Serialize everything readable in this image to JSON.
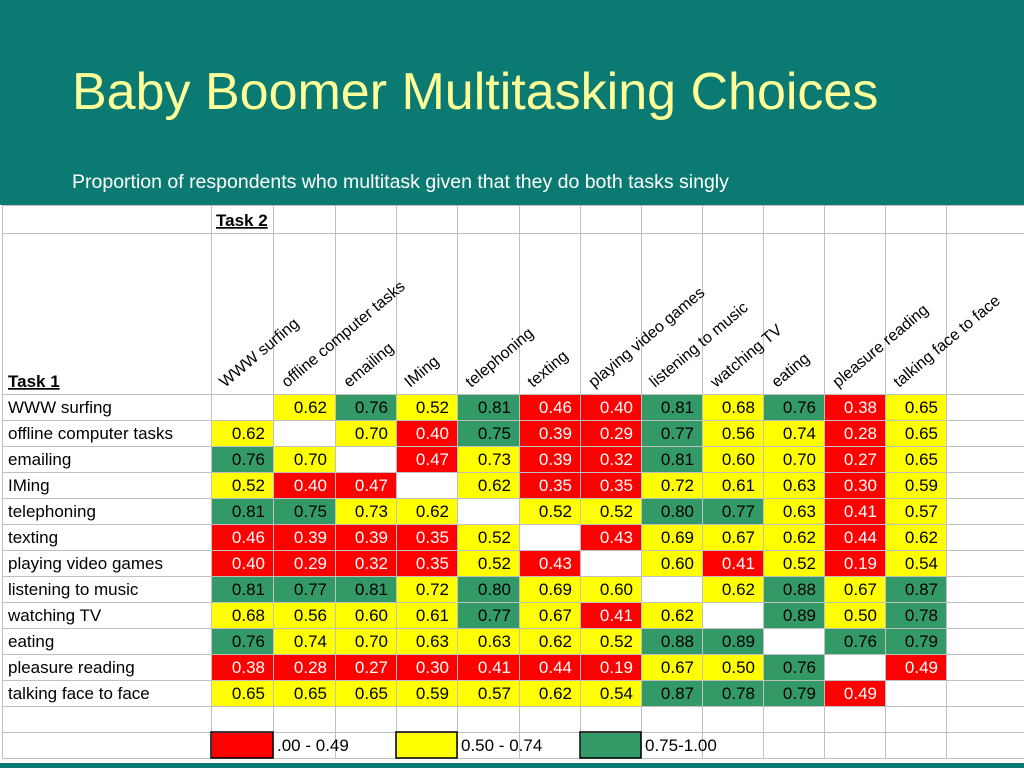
{
  "title": "Baby Boomer Multitasking Choices",
  "subtitle": "Proportion of respondents who multitask given that they do both tasks singly",
  "colors": {
    "background": "#0b7a73",
    "title": "#ffff99",
    "red": "#ff0000",
    "yellow": "#ffff00",
    "green": "#339966",
    "grid": "#c0c0c0"
  },
  "chart_data": {
    "type": "heatmap",
    "row_header": "Task 1",
    "col_header": "Task 2",
    "tasks": [
      "WWW surfing",
      "offline computer tasks",
      "emailing",
      "IMing",
      "telephoning",
      "texting",
      "playing video games",
      "listening to music",
      "watching TV",
      "eating",
      "pleasure reading",
      "talking face to face"
    ],
    "values": [
      [
        null,
        "0.62",
        "0.76",
        "0.52",
        "0.81",
        "0.46",
        "0.40",
        "0.81",
        "0.68",
        "0.76",
        "0.38",
        "0.65"
      ],
      [
        "0.62",
        null,
        "0.70",
        "0.40",
        "0.75",
        "0.39",
        "0.29",
        "0.77",
        "0.56",
        "0.74",
        "0.28",
        "0.65"
      ],
      [
        "0.76",
        "0.70",
        null,
        "0.47",
        "0.73",
        "0.39",
        "0.32",
        "0.81",
        "0.60",
        "0.70",
        "0.27",
        "0.65"
      ],
      [
        "0.52",
        "0.40",
        "0.47",
        null,
        "0.62",
        "0.35",
        "0.35",
        "0.72",
        "0.61",
        "0.63",
        "0.30",
        "0.59"
      ],
      [
        "0.81",
        "0.75",
        "0.73",
        "0.62",
        null,
        "0.52",
        "0.52",
        "0.80",
        "0.77",
        "0.63",
        "0.41",
        "0.57"
      ],
      [
        "0.46",
        "0.39",
        "0.39",
        "0.35",
        "0.52",
        null,
        "0.43",
        "0.69",
        "0.67",
        "0.62",
        "0.44",
        "0.62"
      ],
      [
        "0.40",
        "0.29",
        "0.32",
        "0.35",
        "0.52",
        "0.43",
        null,
        "0.60",
        "0.41",
        "0.52",
        "0.19",
        "0.54"
      ],
      [
        "0.81",
        "0.77",
        "0.81",
        "0.72",
        "0.80",
        "0.69",
        "0.60",
        null,
        "0.62",
        "0.88",
        "0.67",
        "0.87"
      ],
      [
        "0.68",
        "0.56",
        "0.60",
        "0.61",
        "0.77",
        "0.67",
        "0.41",
        "0.62",
        null,
        "0.89",
        "0.50",
        "0.78"
      ],
      [
        "0.76",
        "0.74",
        "0.70",
        "0.63",
        "0.63",
        "0.62",
        "0.52",
        "0.88",
        "0.89",
        null,
        "0.76",
        "0.79"
      ],
      [
        "0.38",
        "0.28",
        "0.27",
        "0.30",
        "0.41",
        "0.44",
        "0.19",
        "0.67",
        "0.50",
        "0.76",
        null,
        "0.49"
      ],
      [
        "0.65",
        "0.65",
        "0.65",
        "0.59",
        "0.57",
        "0.62",
        "0.54",
        "0.87",
        "0.78",
        "0.79",
        "0.49",
        null
      ]
    ],
    "legend": [
      {
        "label": ".00 - 0.49",
        "color": "#ff0000"
      },
      {
        "label": "0.50 - 0.74",
        "color": "#ffff00"
      },
      {
        "label": "0.75-1.00",
        "color": "#339966"
      }
    ]
  }
}
